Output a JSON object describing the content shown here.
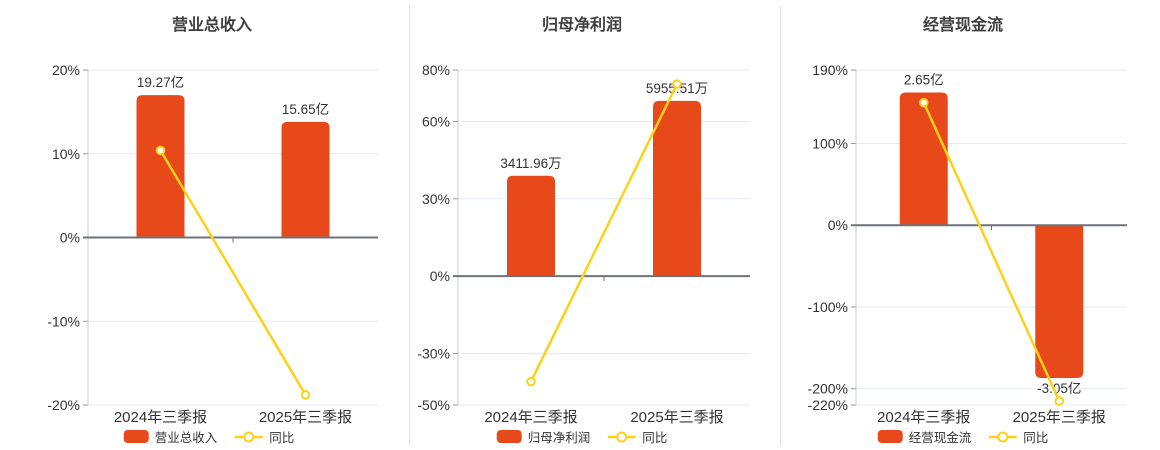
{
  "colors": {
    "bar": "#e8491a",
    "line": "#fcd116",
    "grid": "#e3e9f2",
    "zero_axis": "#6e737b",
    "axis": "#c7ccd4",
    "tick": "#999999",
    "text": "#333333",
    "title": "#3f3f3f",
    "marker_fill": "#ffffff"
  },
  "chart_data": [
    {
      "type": "bar",
      "title": "营业总收入",
      "categories": [
        "2024年三季报",
        "2025年三季报"
      ],
      "bars": {
        "name": "营业总收入",
        "unit": "亿",
        "values": [
          19.27,
          15.65
        ],
        "labels": [
          "19.27亿",
          "15.65亿"
        ]
      },
      "line": {
        "name": "同比",
        "unit": "%",
        "values": [
          10.4,
          -18.78
        ]
      },
      "yticks": [
        20,
        10,
        0,
        -10,
        -20
      ],
      "ytick_labels": [
        "20%",
        "10%",
        "0%",
        "-10%",
        "-20%"
      ],
      "ylim": [
        -20,
        20
      ],
      "legend": [
        "营业总收入",
        "同比"
      ]
    },
    {
      "type": "bar",
      "title": "归母净利润",
      "categories": [
        "2024年三季报",
        "2025年三季报"
      ],
      "bars": {
        "name": "归母净利润",
        "unit": "万",
        "values": [
          3411.96,
          5955.51
        ],
        "labels": [
          "3411.96万",
          "5955.51万"
        ]
      },
      "line": {
        "name": "同比",
        "unit": "%",
        "values": [
          -40.9,
          74.55
        ]
      },
      "yticks": [
        80,
        60,
        30,
        0,
        -30,
        -50
      ],
      "ytick_labels": [
        "80%",
        "60%",
        "30%",
        "0%",
        "-30%",
        "-50%"
      ],
      "ylim": [
        -50,
        80
      ],
      "legend": [
        "归母净利润",
        "同比"
      ]
    },
    {
      "type": "bar",
      "title": "经营现金流",
      "categories": [
        "2024年三季报",
        "2025年三季报"
      ],
      "bars": {
        "name": "经营现金流",
        "unit": "亿",
        "values": [
          2.65,
          -3.05
        ],
        "labels": [
          "2.65亿",
          "-3.05亿"
        ]
      },
      "line": {
        "name": "同比",
        "unit": "%",
        "values": [
          150.0,
          -215.09
        ]
      },
      "yticks": [
        190,
        100,
        0,
        -100,
        -200,
        -220
      ],
      "ytick_labels": [
        "190%",
        "100%",
        "0%",
        "-100%",
        "-200%",
        "-220%"
      ],
      "ylim": [
        -220,
        190
      ],
      "legend": [
        "经营现金流",
        "同比"
      ]
    }
  ]
}
